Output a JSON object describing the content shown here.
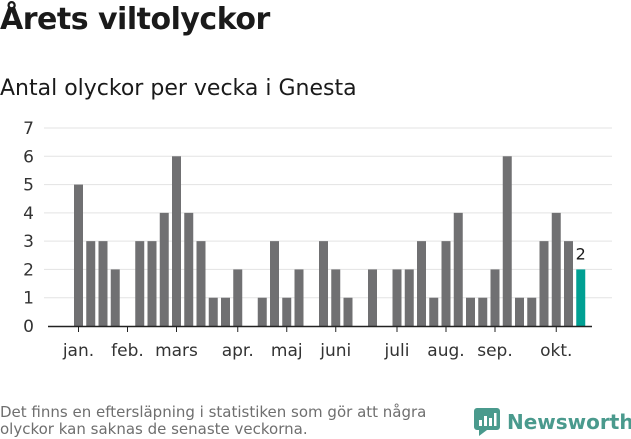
{
  "title": "Årets viltolyckor",
  "subtitle": "Antal olyckor per vecka i Gnesta",
  "footnote": "Det finns en eftersläpning i statistiken som gör att några olyckor kan saknas de senaste veckorna.",
  "brand": {
    "name": "Newsworthy",
    "icon": "newsworthy-logo-icon",
    "color": "#4a9a8d"
  },
  "chart_data": {
    "type": "bar",
    "title": "Antal olyckor per vecka i Gnesta",
    "xlabel": "",
    "ylabel": "",
    "ylim": [
      0,
      7
    ],
    "yticks": [
      0,
      1,
      2,
      3,
      4,
      5,
      6,
      7
    ],
    "grid": true,
    "legend": "none",
    "bar_color": "#707072",
    "highlight_color": "#00a093",
    "x": [
      1,
      2,
      3,
      4,
      5,
      6,
      7,
      8,
      9,
      10,
      11,
      12,
      13,
      14,
      15,
      16,
      17,
      18,
      19,
      20,
      21,
      22,
      23,
      24,
      25,
      26,
      27,
      28,
      29,
      30,
      31,
      32,
      33,
      34,
      35,
      36,
      37,
      38,
      39,
      40,
      41,
      42
    ],
    "values": [
      5,
      3,
      3,
      2,
      0,
      3,
      3,
      4,
      6,
      4,
      3,
      1,
      1,
      2,
      0,
      1,
      3,
      1,
      2,
      0,
      3,
      2,
      1,
      0,
      2,
      0,
      2,
      2,
      3,
      1,
      3,
      4,
      1,
      1,
      2,
      6,
      1,
      1,
      3,
      4,
      3,
      2
    ],
    "highlight_index": 41,
    "highlight_label": "2",
    "month_ticks": [
      {
        "label": "jan.",
        "x": 1
      },
      {
        "label": "feb.",
        "x": 5
      },
      {
        "label": "mars",
        "x": 9
      },
      {
        "label": "apr.",
        "x": 14
      },
      {
        "label": "maj",
        "x": 18
      },
      {
        "label": "juni",
        "x": 22
      },
      {
        "label": "juli",
        "x": 27
      },
      {
        "label": "aug.",
        "x": 31
      },
      {
        "label": "sep.",
        "x": 35
      },
      {
        "label": "okt.",
        "x": 40
      }
    ]
  }
}
